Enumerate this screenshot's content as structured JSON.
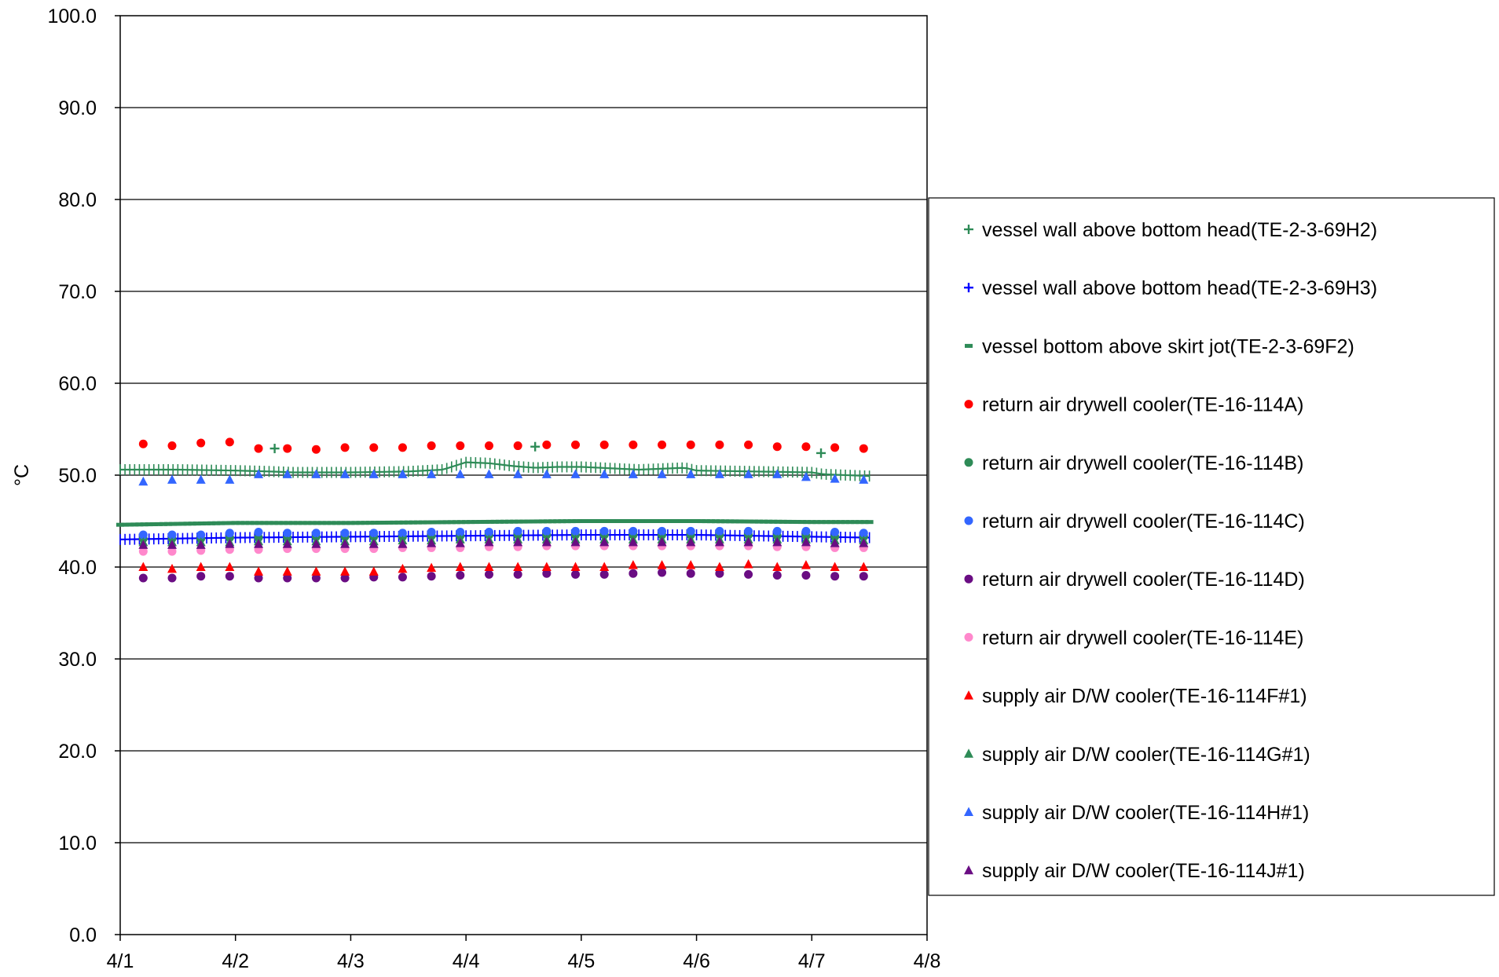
{
  "chart_data": {
    "type": "scatter",
    "title": "",
    "xlabel": "",
    "ylabel": "°C",
    "ylim": [
      0,
      100
    ],
    "y_ticks": [
      "0.0",
      "10.0",
      "20.0",
      "30.0",
      "40.0",
      "50.0",
      "60.0",
      "70.0",
      "80.0",
      "90.0",
      "100.0"
    ],
    "x_ticks": [
      "4/1",
      "4/2",
      "4/3",
      "4/4",
      "4/5",
      "4/6",
      "4/7",
      "4/8"
    ],
    "xlim_days": [
      1,
      8
    ],
    "grid": "horizontal",
    "legend_position": "right",
    "series": [
      {
        "name": "vessel wall above bottom head(TE-2-3-69H2)",
        "marker": "plus",
        "color": "#2e8b57",
        "style": "dense",
        "x": [
          1.0,
          1.5,
          2.0,
          2.3,
          2.5,
          3.0,
          3.5,
          3.8,
          4.0,
          4.2,
          4.4,
          4.6,
          4.8,
          5.0,
          5.5,
          5.9,
          6.0,
          6.5,
          7.0,
          7.1,
          7.5
        ],
        "y": [
          50.6,
          50.6,
          50.5,
          50.4,
          50.3,
          50.3,
          50.4,
          50.6,
          51.4,
          51.3,
          51.0,
          50.8,
          50.9,
          50.9,
          50.6,
          50.8,
          50.5,
          50.4,
          50.3,
          50.1,
          49.9
        ],
        "outliers": [
          {
            "x": 2.34,
            "y": 52.9
          },
          {
            "x": 4.6,
            "y": 53.1
          },
          {
            "x": 7.08,
            "y": 52.4
          }
        ]
      },
      {
        "name": "vessel wall above bottom head(TE-2-3-69H3)",
        "marker": "plus",
        "color": "#0000ff",
        "style": "dense",
        "x": [
          1.0,
          2.0,
          3.0,
          4.0,
          5.0,
          6.0,
          7.0,
          7.5
        ],
        "y": [
          43.0,
          43.2,
          43.3,
          43.4,
          43.5,
          43.5,
          43.3,
          43.2
        ]
      },
      {
        "name": "vessel bottom above skirt jot(TE-2-3-69F2)",
        "marker": "dash",
        "color": "#2e8b57",
        "style": "dense",
        "x": [
          1.0,
          2.0,
          3.0,
          4.0,
          5.0,
          6.0,
          7.0,
          7.5
        ],
        "y": [
          44.6,
          44.8,
          44.8,
          44.9,
          45.0,
          45.0,
          44.9,
          44.9
        ]
      },
      {
        "name": "return air drywell cooler(TE-16-114A)",
        "marker": "circle",
        "color": "#ff0000",
        "x": [
          1.2,
          1.45,
          1.7,
          1.95,
          2.2,
          2.45,
          2.7,
          2.95,
          3.2,
          3.45,
          3.7,
          3.95,
          4.2,
          4.45,
          4.7,
          4.95,
          5.2,
          5.45,
          5.7,
          5.95,
          6.2,
          6.45,
          6.7,
          6.95,
          7.2,
          7.45
        ],
        "y": [
          53.4,
          53.2,
          53.5,
          53.6,
          52.9,
          52.9,
          52.8,
          53.0,
          53.0,
          53.0,
          53.2,
          53.2,
          53.2,
          53.2,
          53.3,
          53.3,
          53.3,
          53.3,
          53.3,
          53.3,
          53.3,
          53.3,
          53.1,
          53.1,
          53.0,
          52.9
        ]
      },
      {
        "name": "return air drywell cooler(TE-16-114B)",
        "marker": "circle",
        "color": "#2e8b57",
        "x": [
          1.2,
          1.45,
          1.7,
          1.95,
          2.2,
          2.45,
          2.7,
          2.95,
          3.2,
          3.45,
          3.7,
          3.95,
          4.2,
          4.45,
          4.7,
          4.95,
          5.2,
          5.45,
          5.7,
          5.95,
          6.2,
          6.45,
          6.7,
          6.95,
          7.2,
          7.45
        ],
        "y": [
          43.1,
          43.1,
          43.1,
          43.2,
          43.2,
          43.2,
          43.3,
          43.3,
          43.3,
          43.3,
          43.4,
          43.4,
          43.5,
          43.5,
          43.5,
          43.5,
          43.5,
          43.5,
          43.5,
          43.5,
          43.5,
          43.5,
          43.4,
          43.4,
          43.3,
          43.3
        ]
      },
      {
        "name": "return air drywell cooler(TE-16-114C)",
        "marker": "circle",
        "color": "#3366ff",
        "x": [
          1.2,
          1.45,
          1.7,
          1.95,
          2.2,
          2.45,
          2.7,
          2.95,
          3.2,
          3.45,
          3.7,
          3.95,
          4.2,
          4.45,
          4.7,
          4.95,
          5.2,
          5.45,
          5.7,
          5.95,
          6.2,
          6.45,
          6.7,
          6.95,
          7.2,
          7.45
        ],
        "y": [
          43.5,
          43.5,
          43.5,
          43.7,
          43.8,
          43.7,
          43.7,
          43.7,
          43.7,
          43.7,
          43.8,
          43.8,
          43.8,
          43.9,
          43.9,
          43.9,
          43.9,
          43.9,
          43.9,
          43.9,
          43.9,
          43.9,
          43.9,
          43.9,
          43.8,
          43.7
        ]
      },
      {
        "name": "return air drywell cooler(TE-16-114D)",
        "marker": "circle",
        "color": "#6a0d83",
        "x": [
          1.2,
          1.45,
          1.7,
          1.95,
          2.2,
          2.45,
          2.7,
          2.95,
          3.2,
          3.45,
          3.7,
          3.95,
          4.2,
          4.45,
          4.7,
          4.95,
          5.2,
          5.45,
          5.7,
          5.95,
          6.2,
          6.45,
          6.7,
          6.95,
          7.2,
          7.45
        ],
        "y": [
          38.8,
          38.8,
          39.0,
          39.0,
          38.8,
          38.8,
          38.8,
          38.8,
          38.9,
          38.9,
          39.0,
          39.1,
          39.2,
          39.2,
          39.3,
          39.2,
          39.2,
          39.3,
          39.4,
          39.3,
          39.3,
          39.2,
          39.1,
          39.1,
          39.0,
          39.0
        ]
      },
      {
        "name": "return air drywell cooler(TE-16-114E)",
        "marker": "circle",
        "color": "#ff88cc",
        "x": [
          1.2,
          1.45,
          1.7,
          1.95,
          2.2,
          2.45,
          2.7,
          2.95,
          3.2,
          3.45,
          3.7,
          3.95,
          4.2,
          4.45,
          4.7,
          4.95,
          5.2,
          5.45,
          5.7,
          5.95,
          6.2,
          6.45,
          6.7,
          6.95,
          7.2,
          7.45
        ],
        "y": [
          41.7,
          41.7,
          41.8,
          41.9,
          41.9,
          42.0,
          42.0,
          42.0,
          42.0,
          42.1,
          42.1,
          42.1,
          42.2,
          42.2,
          42.3,
          42.3,
          42.3,
          42.3,
          42.3,
          42.3,
          42.3,
          42.3,
          42.2,
          42.2,
          42.1,
          42.1
        ]
      },
      {
        "name": "supply air D/W cooler(TE-16-114F#1)",
        "marker": "triangle",
        "color": "#ff0000",
        "x": [
          1.2,
          1.45,
          1.7,
          1.95,
          2.2,
          2.45,
          2.7,
          2.95,
          3.2,
          3.45,
          3.7,
          3.95,
          4.2,
          4.45,
          4.7,
          4.95,
          5.2,
          5.45,
          5.7,
          5.95,
          6.2,
          6.45,
          6.7,
          6.95,
          7.2,
          7.45
        ],
        "y": [
          40.0,
          39.8,
          40.0,
          40.0,
          39.5,
          39.5,
          39.5,
          39.5,
          39.5,
          39.8,
          39.9,
          40.0,
          40.0,
          40.0,
          40.0,
          40.0,
          40.0,
          40.2,
          40.2,
          40.2,
          40.0,
          40.3,
          40.0,
          40.2,
          40.0,
          40.0
        ]
      },
      {
        "name": "supply air D/W cooler(TE-16-114G#1)",
        "marker": "triangle",
        "color": "#2e8b57",
        "x": [
          1.2,
          1.45,
          1.7,
          1.95,
          2.2,
          2.45,
          2.7,
          2.95,
          3.2,
          3.45,
          3.7,
          3.95,
          4.2,
          4.45,
          4.7,
          4.95,
          5.2,
          5.45,
          5.7,
          5.95,
          6.2,
          6.45,
          6.7,
          6.95,
          7.2,
          7.45
        ],
        "y": [
          42.7,
          42.7,
          42.7,
          42.7,
          42.8,
          42.8,
          42.8,
          42.8,
          42.8,
          42.9,
          42.9,
          43.0,
          43.0,
          43.0,
          43.0,
          43.0,
          43.0,
          43.0,
          43.0,
          43.0,
          43.0,
          43.0,
          43.0,
          43.0,
          42.9,
          42.9
        ]
      },
      {
        "name": "supply air D/W cooler(TE-16-114H#1)",
        "marker": "triangle",
        "color": "#3366ff",
        "x": [
          1.2,
          1.45,
          1.7,
          1.95,
          2.2,
          2.45,
          2.7,
          2.95,
          3.2,
          3.45,
          3.7,
          3.95,
          4.2,
          4.45,
          4.7,
          4.95,
          5.2,
          5.45,
          5.7,
          5.95,
          6.2,
          6.45,
          6.7,
          6.95,
          7.2,
          7.45
        ],
        "y": [
          49.3,
          49.5,
          49.5,
          49.5,
          50.1,
          50.1,
          50.1,
          50.1,
          50.1,
          50.1,
          50.1,
          50.1,
          50.1,
          50.1,
          50.1,
          50.1,
          50.1,
          50.1,
          50.1,
          50.1,
          50.1,
          50.1,
          50.1,
          49.8,
          49.6,
          49.5
        ]
      },
      {
        "name": "supply air D/W cooler(TE-16-114J#1)",
        "marker": "triangle",
        "color": "#6a0d83",
        "x": [
          1.2,
          1.45,
          1.7,
          1.95,
          2.2,
          2.45,
          2.7,
          2.95,
          3.2,
          3.45,
          3.7,
          3.95,
          4.2,
          4.45,
          4.7,
          4.95,
          5.2,
          5.45,
          5.7,
          5.95,
          6.2,
          6.45,
          6.7,
          6.95,
          7.2,
          7.45
        ],
        "y": [
          42.4,
          42.4,
          42.4,
          42.5,
          42.5,
          42.5,
          42.5,
          42.5,
          42.5,
          42.5,
          42.6,
          42.6,
          42.7,
          42.7,
          42.7,
          42.7,
          42.7,
          42.7,
          42.7,
          42.7,
          42.7,
          42.7,
          42.7,
          42.7,
          42.6,
          42.6
        ]
      }
    ]
  }
}
